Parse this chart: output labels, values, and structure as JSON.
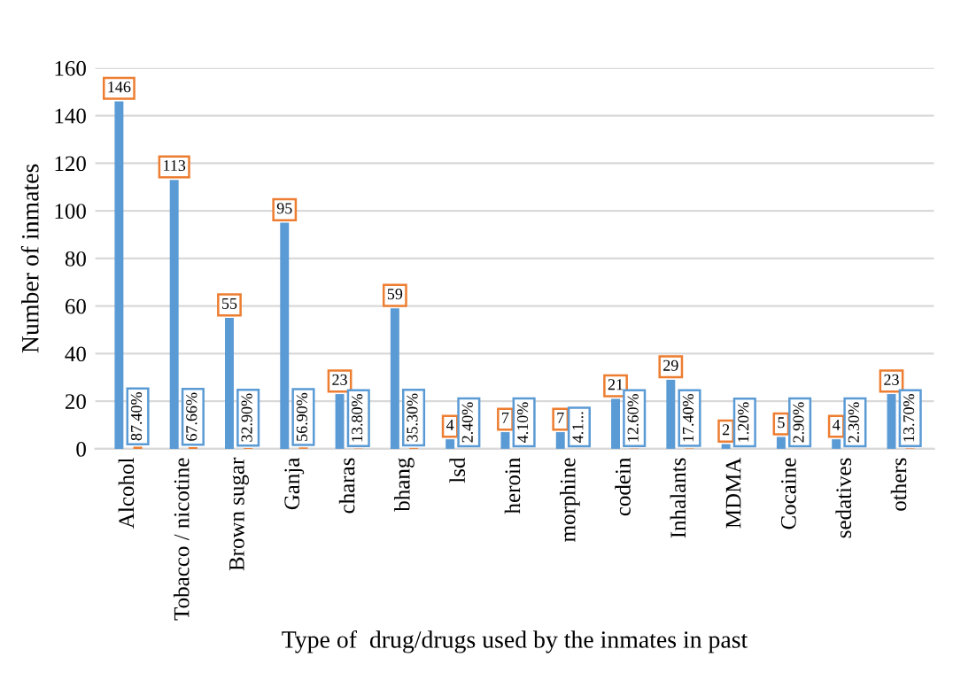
{
  "chart_data": {
    "type": "bar",
    "xlabel": "Type of  drug/drugs used by the inmates in past",
    "ylabel": "Number of inmates",
    "categories": [
      "Alcohol",
      "Tobacco / nicotine",
      "Brown sugar",
      "Ganja",
      "charas",
      "bhang",
      "lsd",
      "heroin",
      "morphine",
      "codein",
      "Inhalants",
      "MDMA",
      "Cocaine",
      "sedatives",
      "others"
    ],
    "series": [
      {
        "color": "#5b9bd5",
        "values": [
          146,
          113,
          55,
          95,
          23,
          59,
          4,
          7,
          7,
          21,
          29,
          2,
          5,
          4,
          23
        ],
        "value_labels": [
          "146",
          "113",
          "55",
          "95",
          "23",
          "59",
          "4",
          "7",
          "7",
          "21",
          "29",
          "2",
          "5",
          "4",
          "23"
        ]
      },
      {
        "color": "#ed7d31",
        "values": [
          0.874,
          0.6766,
          0.329,
          0.569,
          0.138,
          0.353,
          0.024,
          0.041,
          0.041,
          0.126,
          0.174,
          0.012,
          0.029,
          0.023,
          0.137
        ],
        "value_labels": [
          "87.40%",
          "67.66%",
          "32.90%",
          "56.90%",
          "13.80%",
          "35.30%",
          "2.40%",
          "4.10%",
          "4.1...",
          "12.60%",
          "17.40%",
          "1.20%",
          "2.90%",
          "2.30%",
          "13.70%"
        ]
      }
    ],
    "ylim": [
      0,
      160
    ],
    "yticks": [
      0,
      20,
      40,
      60,
      80,
      100,
      120,
      140,
      160
    ],
    "grid": "y",
    "legend": false
  }
}
